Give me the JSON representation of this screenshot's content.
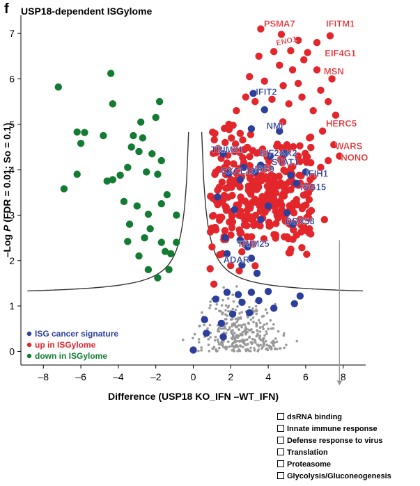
{
  "panel_letter": "f",
  "chart_data": {
    "type": "scatter",
    "title": "USP18-dependent ISGylome",
    "xlabel": "Difference (USP18 KO_IFN –WT_IFN)",
    "ylabel": "–Log P (FDR = 0.01; So = 0.1)",
    "ylabel_italic": "P",
    "xlim": [
      -9.2,
      9.2
    ],
    "ylim": [
      -0.3,
      7.4
    ],
    "x_ticks": [
      -8,
      -6,
      -4,
      -2,
      0,
      2,
      4,
      6,
      8
    ],
    "x_tick_labels": [
      "–8",
      "–6",
      "–4",
      "–2",
      "0",
      "2",
      "4",
      "6",
      "8"
    ],
    "y_ticks": [
      0,
      1,
      2,
      3,
      4,
      5,
      6,
      7
    ],
    "y_tick_labels": [
      "0",
      "1",
      "2",
      "3",
      "4",
      "5",
      "6",
      "7"
    ],
    "grid": false,
    "threshold_curve": {
      "fdr": 0.01,
      "s0": 0.1,
      "baseline_y": 1.33
    },
    "legend_position": "bottom-left",
    "series": [
      {
        "name": "ISG cancer signature",
        "color": "#2b3f9b",
        "points": [
          [
            3.2,
            5.68
          ],
          [
            3.8,
            5.32
          ],
          [
            3.1,
            4.9
          ],
          [
            4.6,
            4.85
          ],
          [
            1.6,
            4.35
          ],
          [
            2.7,
            4.05
          ],
          [
            3.6,
            4.1
          ],
          [
            4.1,
            4.3
          ],
          [
            4.9,
            4.35
          ],
          [
            3.3,
            3.95
          ],
          [
            1.9,
            3.92
          ],
          [
            2.5,
            3.78
          ],
          [
            5.2,
            3.88
          ],
          [
            6.0,
            3.95
          ],
          [
            5.5,
            3.7
          ],
          [
            4.0,
            3.2
          ],
          [
            5.0,
            3.05
          ],
          [
            5.3,
            2.8
          ],
          [
            3.6,
            2.9
          ],
          [
            1.3,
            3.4
          ],
          [
            2.2,
            3.12
          ],
          [
            1.7,
            2.5
          ],
          [
            2.5,
            2.45
          ],
          [
            2.9,
            2.3
          ],
          [
            1.8,
            2.15
          ],
          [
            3.1,
            2.05
          ],
          [
            2.6,
            1.9
          ],
          [
            3.4,
            1.72
          ],
          [
            1.8,
            1.3
          ],
          [
            2.4,
            1.25
          ],
          [
            3.1,
            1.3
          ],
          [
            4.0,
            1.32
          ],
          [
            5.7,
            1.22
          ],
          [
            1.2,
            1.15
          ],
          [
            2.6,
            1.08
          ],
          [
            3.5,
            1.12
          ],
          [
            4.3,
            0.95
          ],
          [
            5.4,
            1.05
          ],
          [
            3.0,
            0.85
          ],
          [
            2.1,
            0.82
          ],
          [
            0.6,
            0.7
          ],
          [
            1.5,
            0.62
          ],
          [
            0.7,
            0.4
          ],
          [
            1.6,
            0.32
          ],
          [
            0.0,
            0.03
          ]
        ]
      },
      {
        "name": "up in ISGylome",
        "color": "#e3262b",
        "points": [
          [
            3.6,
            7.1
          ],
          [
            4.7,
            6.98
          ],
          [
            5.6,
            6.85
          ],
          [
            6.6,
            6.8
          ],
          [
            7.3,
            6.95
          ],
          [
            4.3,
            6.6
          ],
          [
            5.2,
            6.62
          ],
          [
            6.1,
            6.58
          ],
          [
            3.5,
            6.5
          ],
          [
            4.6,
            6.3
          ],
          [
            5.3,
            6.2
          ],
          [
            5.9,
            6.42
          ],
          [
            3.0,
            6.05
          ],
          [
            3.8,
            5.95
          ],
          [
            4.8,
            5.85
          ],
          [
            5.6,
            5.9
          ],
          [
            6.6,
            6.2
          ],
          [
            7.4,
            6.0
          ],
          [
            2.8,
            5.6
          ],
          [
            3.3,
            5.5
          ],
          [
            4.2,
            5.55
          ],
          [
            5.1,
            5.45
          ],
          [
            5.8,
            5.6
          ],
          [
            6.8,
            5.75
          ],
          [
            7.2,
            5.5
          ],
          [
            6.4,
            5.3
          ],
          [
            7.6,
            5.2
          ],
          [
            6.9,
            4.85
          ],
          [
            7.5,
            4.55
          ],
          [
            6.2,
            4.7
          ],
          [
            7.8,
            4.3
          ],
          [
            7.2,
            4.2
          ],
          [
            6.8,
            4.05
          ],
          [
            6.4,
            3.85
          ],
          [
            6.1,
            3.5
          ],
          [
            5.9,
            3.2
          ],
          [
            6.3,
            3.1
          ],
          [
            6.2,
            2.7
          ],
          [
            7.0,
            2.9
          ],
          [
            1.4,
            2.95
          ],
          [
            1.0,
            2.3
          ],
          [
            0.9,
            1.82
          ],
          [
            1.1,
            1.48
          ],
          [
            1.3,
            3.55
          ],
          [
            1.2,
            3.95
          ],
          [
            1.7,
            4.6
          ],
          [
            1.9,
            5.0
          ],
          [
            2.3,
            5.3
          ],
          [
            2.2,
            4.4
          ],
          [
            1.8,
            4.15
          ],
          [
            2.5,
            4.8
          ],
          [
            4.6,
            4.85
          ],
          [
            5.0,
            4.55
          ],
          [
            5.6,
            4.3
          ],
          [
            4.1,
            4.3
          ],
          [
            3.6,
            4.05
          ]
        ]
      },
      {
        "name": "down in ISGylome",
        "color": "#137c32",
        "points": [
          [
            -7.2,
            5.82
          ],
          [
            -6.2,
            4.83
          ],
          [
            -5.8,
            4.82
          ],
          [
            -4.4,
            6.12
          ],
          [
            -4.3,
            5.45
          ],
          [
            -4.8,
            4.75
          ],
          [
            -1.8,
            5.5
          ],
          [
            -2.8,
            5.05
          ],
          [
            -2.0,
            5.15
          ],
          [
            -6.0,
            4.58
          ],
          [
            -3.2,
            4.75
          ],
          [
            -2.7,
            4.7
          ],
          [
            -6.9,
            3.58
          ],
          [
            -6.2,
            3.9
          ],
          [
            -4.6,
            3.75
          ],
          [
            -3.9,
            3.88
          ],
          [
            -4.3,
            3.78
          ],
          [
            -1.9,
            3.9
          ],
          [
            -2.5,
            3.95
          ],
          [
            -3.5,
            4.05
          ],
          [
            -2.9,
            4.4
          ],
          [
            -3.3,
            4.5
          ],
          [
            -2.2,
            4.35
          ],
          [
            -1.7,
            4.2
          ],
          [
            -3.7,
            3.3
          ],
          [
            -3.0,
            3.2
          ],
          [
            -1.7,
            3.25
          ],
          [
            -0.9,
            3.0
          ],
          [
            -1.4,
            3.45
          ],
          [
            -2.4,
            3.02
          ],
          [
            -3.4,
            2.8
          ],
          [
            -2.6,
            2.5
          ],
          [
            -1.7,
            2.4
          ],
          [
            -3.5,
            2.42
          ],
          [
            -2.9,
            2.1
          ],
          [
            -2.4,
            1.8
          ],
          [
            -1.3,
            1.8
          ],
          [
            -1.9,
            1.62
          ],
          [
            -2.3,
            2.7
          ],
          [
            -1.2,
            2.15
          ],
          [
            -0.9,
            2.4
          ],
          [
            -1.5,
            2.2
          ]
        ]
      }
    ],
    "background_points": {
      "color": "#999999",
      "count": 340,
      "x_center": 2.5,
      "x_spread": 2.3,
      "y_max": 1.45
    },
    "up_cloud": {
      "count": 300,
      "x_range": [
        0.9,
        6.4
      ],
      "y_center": 3.4,
      "y_spread": 1.2
    },
    "annotations": [
      {
        "text": "PSMA7",
        "x": 4.6,
        "y": 7.15,
        "color": "#e3262b"
      },
      {
        "text": "IFITM1",
        "x": 7.85,
        "y": 7.15,
        "color": "#e3262b"
      },
      {
        "text": "ENO1",
        "x": 5.0,
        "y": 6.78,
        "color": "#e3262b",
        "rotate": -12,
        "small": true
      },
      {
        "text": "EIF4G1",
        "x": 7.85,
        "y": 6.5,
        "color": "#e3262b"
      },
      {
        "text": "MSN",
        "x": 7.5,
        "y": 6.1,
        "color": "#e3262b"
      },
      {
        "text": "HERC5",
        "x": 7.9,
        "y": 4.95,
        "color": "#e3262b"
      },
      {
        "text": "WARS",
        "x": 8.3,
        "y": 4.45,
        "color": "#e3262b"
      },
      {
        "text": "NONO",
        "x": 8.6,
        "y": 4.2,
        "color": "#e3262b"
      },
      {
        "text": "IFIT2",
        "x": 3.9,
        "y": 5.65,
        "color": "#2b3f9b"
      },
      {
        "text": "NMI",
        "x": 4.35,
        "y": 4.9,
        "color": "#2b3f9b"
      },
      {
        "text": "TRIM21",
        "x": 1.8,
        "y": 4.38,
        "color": "#2b3f9b"
      },
      {
        "text": "EIF2AK2",
        "x": 4.55,
        "y": 4.3,
        "color": "#2b3f9b"
      },
      {
        "text": "STAT1",
        "x": 4.9,
        "y": 4.1,
        "color": "#2b3f9b"
      },
      {
        "text": "IRF9",
        "x": 3.8,
        "y": 3.95,
        "color": "#2b3f9b"
      },
      {
        "text": "CXCL10",
        "x": 2.4,
        "y": 3.9,
        "color": "#2b3f9b"
      },
      {
        "text": "IFIH1",
        "x": 6.6,
        "y": 3.85,
        "color": "#2b3f9b"
      },
      {
        "text": "ISG15",
        "x": 6.4,
        "y": 3.55,
        "color": "#2b3f9b"
      },
      {
        "text": "DDX58",
        "x": 5.7,
        "y": 2.8,
        "color": "#2b3f9b"
      },
      {
        "text": "TRIM25",
        "x": 3.2,
        "y": 2.3,
        "color": "#2b3f9b"
      },
      {
        "text": "ADAR",
        "x": 2.3,
        "y": 1.95,
        "color": "#2b3f9b"
      }
    ],
    "arrow": {
      "x": 7.8,
      "y_from": 2.45,
      "y_to": -0.75,
      "color": "#999999"
    }
  },
  "go_terms": [
    "dsRNA binding",
    "Innate immune response",
    "Defense response to virus",
    "Translation",
    "Proteasome",
    "Glycolysis/Gluconeogenesis"
  ]
}
